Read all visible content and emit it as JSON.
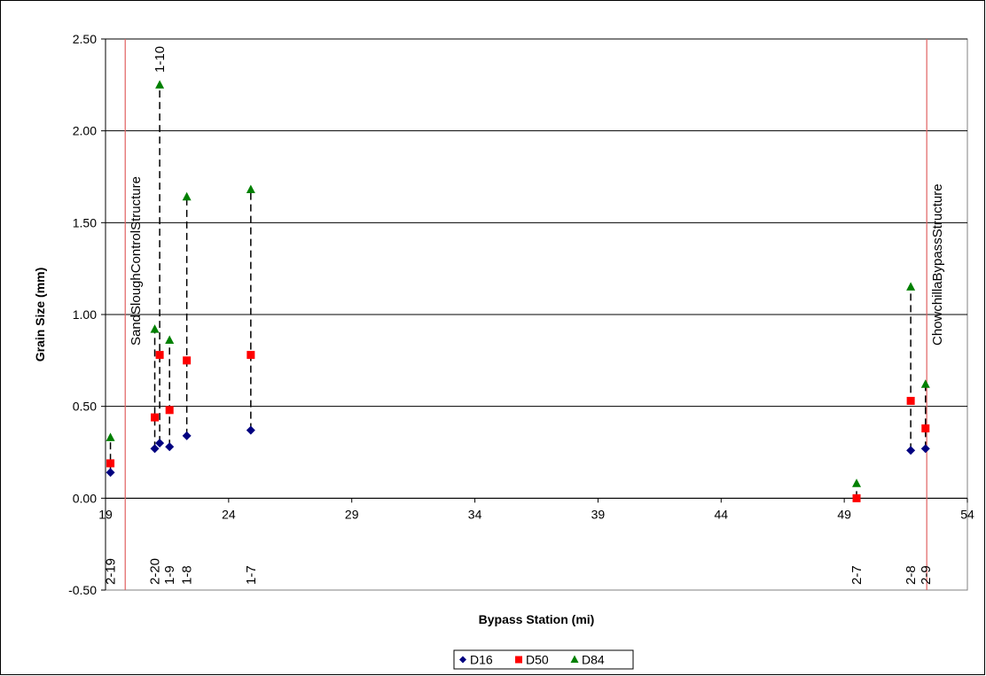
{
  "chart_data": {
    "type": "scatter",
    "xlabel": "Bypass Station (mi)",
    "ylabel": "Grain Size (mm)",
    "xlim": [
      19,
      54
    ],
    "ylim": [
      -0.5,
      2.5
    ],
    "x_ticks": [
      19,
      24,
      29,
      34,
      39,
      44,
      49,
      54
    ],
    "y_ticks": [
      -0.5,
      0.0,
      0.5,
      1.0,
      1.5,
      2.0,
      2.5
    ],
    "x_tick_labels": [
      "19",
      "24",
      "29",
      "34",
      "39",
      "44",
      "49",
      "54"
    ],
    "y_tick_labels": [
      "-0.50",
      "0.00",
      "0.50",
      "1.00",
      "1.50",
      "2.00",
      "2.50"
    ],
    "grid": "horizontal",
    "legend_position": "bottom",
    "colors": {
      "D16": "#000080",
      "D50": "#ff0000",
      "D84": "#008000",
      "structure_line": "#e06060",
      "connector": "#000000"
    },
    "series": [
      {
        "name": "D16",
        "marker": "diamond",
        "x": [
          19.2,
          21.0,
          21.2,
          21.6,
          22.3,
          24.9,
          51.7,
          52.3
        ],
        "y": [
          0.14,
          0.27,
          0.3,
          0.28,
          0.34,
          0.37,
          0.26,
          0.27
        ]
      },
      {
        "name": "D50",
        "marker": "square",
        "x": [
          19.2,
          21.0,
          21.2,
          21.6,
          22.3,
          24.9,
          49.5,
          51.7,
          52.3
        ],
        "y": [
          0.19,
          0.44,
          0.78,
          0.48,
          0.75,
          0.78,
          0.0,
          0.53,
          0.38
        ]
      },
      {
        "name": "D84",
        "marker": "triangle",
        "x": [
          19.2,
          21.0,
          21.2,
          21.6,
          22.3,
          24.9,
          49.5,
          51.7,
          52.3
        ],
        "y": [
          0.33,
          0.92,
          2.25,
          0.86,
          1.64,
          1.68,
          0.08,
          1.15,
          0.62
        ]
      }
    ],
    "connectors": [
      {
        "x": 19.2,
        "y_low": 0.14,
        "y_high": 0.33
      },
      {
        "x": 21.0,
        "y_low": 0.27,
        "y_high": 0.92
      },
      {
        "x": 21.2,
        "y_low": 0.3,
        "y_high": 2.25
      },
      {
        "x": 21.6,
        "y_low": 0.28,
        "y_high": 0.86
      },
      {
        "x": 22.3,
        "y_low": 0.34,
        "y_high": 1.64
      },
      {
        "x": 24.9,
        "y_low": 0.37,
        "y_high": 1.68
      },
      {
        "x": 49.5,
        "y_low": 0.0,
        "y_high": 0.08
      },
      {
        "x": 51.7,
        "y_low": 0.26,
        "y_high": 1.15
      },
      {
        "x": 52.3,
        "y_low": 0.27,
        "y_high": 0.62
      }
    ],
    "sample_labels": [
      {
        "text": "2-19",
        "x": 19.2
      },
      {
        "text": "2-20",
        "x": 21.0
      },
      {
        "text": "1-9",
        "x": 21.6
      },
      {
        "text": "1-8",
        "x": 22.3
      },
      {
        "text": "1-7",
        "x": 24.9
      },
      {
        "text": "2-7",
        "x": 49.5
      },
      {
        "text": "2-8",
        "x": 51.7
      },
      {
        "text": "2-9",
        "x": 52.3
      }
    ],
    "top_labels": [
      {
        "text": "1-10",
        "x": 21.2
      }
    ],
    "structures": [
      {
        "name": "SandSloughControlStructure",
        "x": 19.8
      },
      {
        "name": "ChowchillaBypassStructure",
        "x": 52.35
      }
    ]
  }
}
